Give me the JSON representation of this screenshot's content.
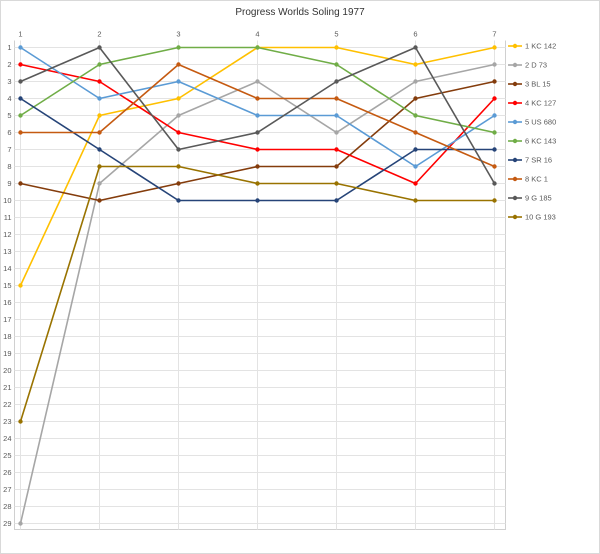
{
  "title": "Progress Worlds Soling 1977",
  "axes": {
    "x_tick_labels": [
      "1",
      "2",
      "3",
      "4",
      "5",
      "6",
      "7"
    ],
    "y_tick_labels": [
      "1",
      "2",
      "3",
      "4",
      "5",
      "6",
      "7",
      "8",
      "9",
      "10",
      "11",
      "12",
      "13",
      "14",
      "15",
      "16",
      "17",
      "18",
      "19",
      "20",
      "21",
      "22",
      "23",
      "24",
      "25",
      "26",
      "27",
      "28",
      "29"
    ]
  },
  "colors": {
    "grid": "#e3e3e3",
    "plot_border": "#d0d0d0",
    "tick_label": "#595959",
    "legend_label": "#595959",
    "title": "#333333"
  },
  "chart_data": {
    "type": "line",
    "title": "Progress Worlds Soling 1977",
    "xlabel": "",
    "ylabel": "",
    "x": [
      1,
      2,
      3,
      4,
      5,
      6,
      7
    ],
    "x_axis": {
      "position": "top",
      "ticks": [
        1,
        2,
        3,
        4,
        5,
        6,
        7
      ]
    },
    "y_axis": {
      "min": 1,
      "max": 29,
      "tick_step": 1,
      "inverted": true
    },
    "grid": true,
    "legend_position": "right",
    "series": [
      {
        "name": "1 KC 142",
        "color": "#FFC000",
        "values": [
          15,
          5,
          4,
          1,
          1,
          2,
          1
        ]
      },
      {
        "name": "2 D 73",
        "color": "#A6A6A6",
        "values": [
          29,
          9,
          5,
          3,
          6,
          3,
          2
        ]
      },
      {
        "name": "3 BL 15",
        "color": "#843C0C",
        "values": [
          9,
          10,
          9,
          8,
          8,
          4,
          3
        ]
      },
      {
        "name": "4 KC 127",
        "color": "#FF0000",
        "values": [
          2,
          3,
          6,
          7,
          7,
          9,
          4
        ]
      },
      {
        "name": "5 US 680",
        "color": "#5B9BD5",
        "values": [
          1,
          4,
          3,
          5,
          5,
          8,
          5
        ]
      },
      {
        "name": "6 KC 143",
        "color": "#70AD47",
        "values": [
          5,
          2,
          1,
          1,
          2,
          5,
          6
        ]
      },
      {
        "name": "7 SR 16",
        "color": "#264478",
        "values": [
          4,
          7,
          10,
          10,
          10,
          7,
          7
        ]
      },
      {
        "name": "8 KC 1",
        "color": "#C55A11",
        "values": [
          6,
          6,
          2,
          4,
          4,
          6,
          8
        ]
      },
      {
        "name": "9 G 185",
        "color": "#595959",
        "values": [
          3,
          1,
          7,
          6,
          3,
          1,
          9
        ]
      },
      {
        "name": "10 G 193",
        "color": "#997300",
        "values": [
          23,
          8,
          8,
          9,
          9,
          10,
          10
        ]
      }
    ]
  }
}
